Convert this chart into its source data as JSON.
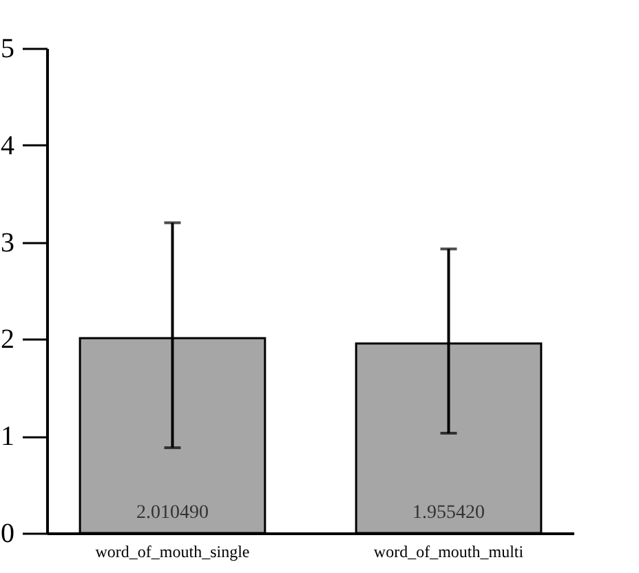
{
  "chart_data": {
    "type": "bar",
    "categories": [
      "word_of_mouth_single",
      "word_of_mouth_multi"
    ],
    "values": [
      2.01049,
      1.95542
    ],
    "value_labels": [
      "2.010490",
      "1.955420"
    ],
    "errors": [
      [
        0.88,
        3.2
      ],
      [
        1.03,
        2.93
      ]
    ],
    "color": "#a6a6a6",
    "ylim": [
      0,
      5
    ],
    "yticks": [
      0,
      1,
      2,
      3,
      4,
      5
    ],
    "grid": false
  }
}
